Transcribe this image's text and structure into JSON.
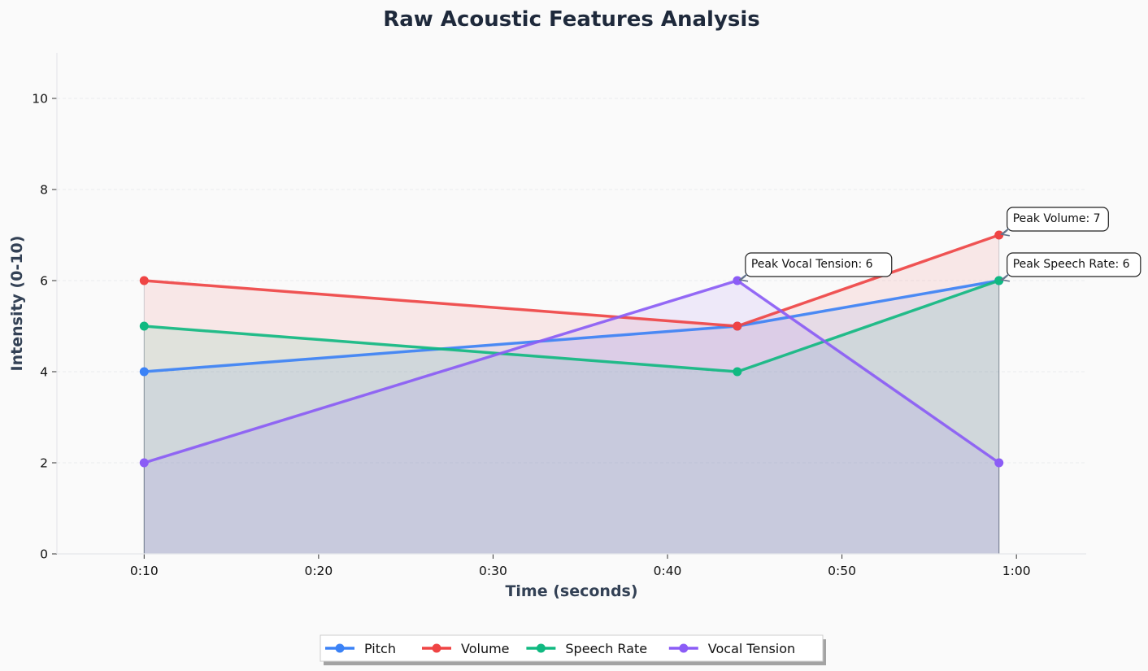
{
  "chart_data": {
    "type": "line",
    "title": "Raw Acoustic Features Analysis",
    "xlabel": "Time (seconds)",
    "ylabel": "Intensity (0-10)",
    "x_ticks": [
      "0:10",
      "0:20",
      "0:30",
      "0:40",
      "0:50",
      "1:00"
    ],
    "x_tick_values": [
      10,
      20,
      30,
      40,
      50,
      60
    ],
    "y_ticks": [
      "0",
      "2",
      "4",
      "6",
      "8",
      "10"
    ],
    "y_tick_values": [
      0,
      2,
      4,
      6,
      8,
      10
    ],
    "xlim": [
      5,
      64
    ],
    "ylim": [
      0,
      11
    ],
    "grid": true,
    "area_fill": true,
    "legend_position": "bottom-center",
    "x": [
      10,
      44,
      59
    ],
    "series": [
      {
        "name": "Pitch",
        "color": "#3b82f6",
        "values": [
          4,
          5,
          6
        ]
      },
      {
        "name": "Volume",
        "color": "#ef4444",
        "values": [
          6,
          5,
          7
        ]
      },
      {
        "name": "Speech Rate",
        "color": "#10b981",
        "values": [
          5,
          4,
          6
        ]
      },
      {
        "name": "Vocal Tension",
        "color": "#8b5cf6",
        "values": [
          2,
          6,
          2
        ]
      }
    ],
    "annotations": [
      {
        "text": "Peak Volume: 7",
        "x": 59,
        "y": 7
      },
      {
        "text": "Peak Vocal Tension: 6",
        "x": 44,
        "y": 6
      },
      {
        "text": "Peak Speech Rate: 6",
        "x": 59,
        "y": 6
      }
    ]
  }
}
